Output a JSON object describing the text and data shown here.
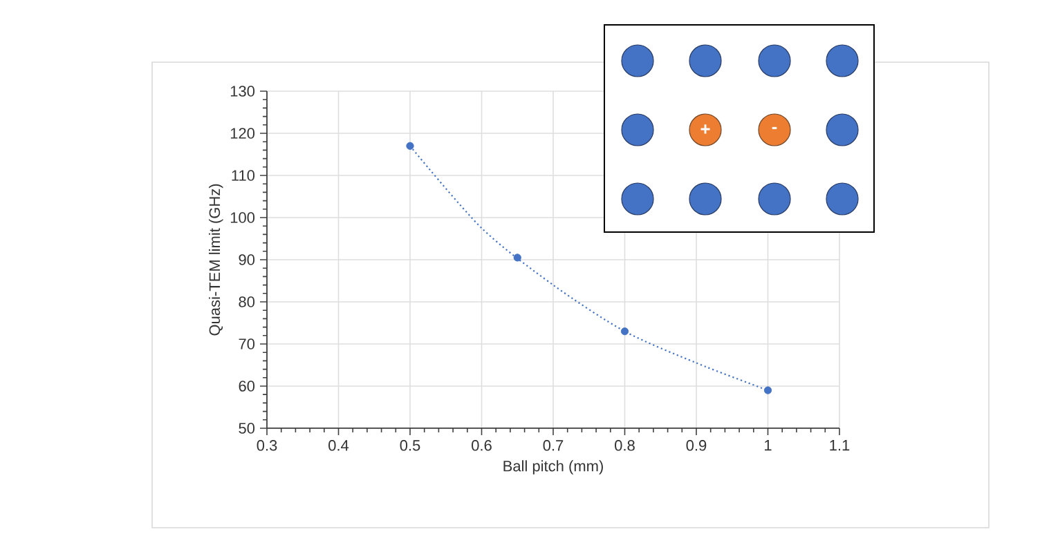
{
  "chart_data": {
    "type": "scatter",
    "xlabel": "Ball pitch (mm)",
    "ylabel": "Quasi-TEM limit (GHz)",
    "xlim": [
      0.3,
      1.1
    ],
    "xticks": [
      0.3,
      0.4,
      0.5,
      0.6,
      0.7,
      0.8,
      0.9,
      1,
      1.1
    ],
    "ylim": [
      50,
      130
    ],
    "yticks": [
      50,
      60,
      70,
      80,
      90,
      100,
      110,
      120,
      130
    ],
    "grid": true,
    "series": [
      {
        "color": "#4472c4",
        "marker": "circle",
        "x": [
          0.5,
          0.65,
          0.8,
          1
        ],
        "values": [
          117,
          90.5,
          73,
          59
        ]
      },
      {
        "type": "line",
        "color": "#4472c4",
        "marker": "none",
        "line_style": "dotted",
        "x": [
          0.5,
          0.6,
          0.7,
          0.8,
          0.9,
          1
        ],
        "values": [
          117,
          97.5,
          84,
          73,
          65.5,
          59
        ]
      }
    ],
    "annotations": [
      "+",
      "-"
    ]
  }
}
